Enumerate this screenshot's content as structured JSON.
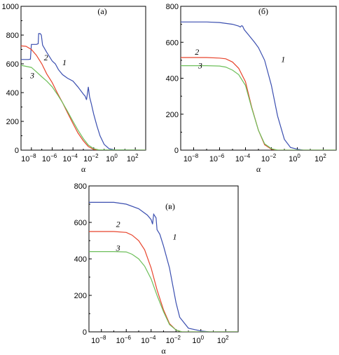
{
  "chart_data": [
    {
      "type": "line",
      "title": "(a)",
      "xlabel": "α",
      "x_scale": "log",
      "xlim": [
        1e-09,
        1000.0
      ],
      "x_ticks": [
        {
          "base": "10",
          "exp": "−8",
          "value": 1e-08
        },
        {
          "base": "10",
          "exp": "−6",
          "value": 1e-06
        },
        {
          "base": "10",
          "exp": "−4",
          "value": 0.0001
        },
        {
          "base": "10",
          "exp": "−2",
          "value": 0.01
        },
        {
          "base": "10",
          "exp": "0",
          "value": 1
        },
        {
          "base": "10",
          "exp": "2",
          "value": 100
        }
      ],
      "ylim": [
        0,
        1000
      ],
      "y_ticks": [
        "0",
        "200",
        "400",
        "600",
        "800",
        "1000"
      ],
      "series": [
        {
          "label": "1",
          "color": "#3b4fb0",
          "points": [
            [
              1e-09,
              630
            ],
            [
              5e-09,
              630
            ],
            [
              8e-09,
              632
            ],
            [
              1e-08,
              735
            ],
            [
              3e-08,
              735
            ],
            [
              4.5e-08,
              740
            ],
            [
              5e-08,
              810
            ],
            [
              7e-08,
              810
            ],
            [
              9e-08,
              800
            ],
            [
              1.2e-07,
              730
            ],
            [
              3e-07,
              680
            ],
            [
              1e-06,
              620
            ],
            [
              2e-06,
              600
            ],
            [
              4e-06,
              560
            ],
            [
              1e-05,
              525
            ],
            [
              3e-05,
              500
            ],
            [
              0.0001,
              480
            ],
            [
              0.0003,
              440
            ],
            [
              0.001,
              390
            ],
            [
              0.0015,
              375
            ],
            [
              0.002,
              350
            ],
            [
              0.0025,
              395
            ],
            [
              0.003,
              440
            ],
            [
              0.004,
              370
            ],
            [
              0.006,
              320
            ],
            [
              0.01,
              250
            ],
            [
              0.02,
              170
            ],
            [
              0.04,
              100
            ],
            [
              0.1,
              40
            ],
            [
              0.3,
              10
            ],
            [
              1,
              2
            ],
            [
              1000,
              0
            ]
          ],
          "label_at": [
            1.5e-05,
            590
          ]
        },
        {
          "label": "2",
          "color": "#e8442c",
          "points": [
            [
              1e-09,
              725
            ],
            [
              3e-09,
              722
            ],
            [
              1e-08,
              700
            ],
            [
              3e-08,
              660
            ],
            [
              1e-07,
              600
            ],
            [
              3e-07,
              530
            ],
            [
              1e-06,
              470
            ],
            [
              3e-06,
              400
            ],
            [
              1e-05,
              330
            ],
            [
              3e-05,
              260
            ],
            [
              0.0001,
              185
            ],
            [
              0.0003,
              120
            ],
            [
              0.001,
              65
            ],
            [
              0.003,
              25
            ],
            [
              0.01,
              5
            ],
            [
              0.03,
              1
            ],
            [
              1000,
              0
            ]
          ],
          "label_at": [
            2.5e-07,
            625
          ]
        },
        {
          "label": "3",
          "color": "#6dbf5a",
          "points": [
            [
              1e-09,
              590
            ],
            [
              1e-08,
              575
            ],
            [
              3e-08,
              545
            ],
            [
              1e-07,
              510
            ],
            [
              3e-07,
              480
            ],
            [
              1e-06,
              440
            ],
            [
              3e-06,
              390
            ],
            [
              1e-05,
              330
            ],
            [
              3e-05,
              270
            ],
            [
              0.0001,
              200
            ],
            [
              0.0003,
              140
            ],
            [
              0.001,
              80
            ],
            [
              0.003,
              35
            ],
            [
              0.01,
              10
            ],
            [
              0.03,
              2
            ],
            [
              1000,
              0
            ]
          ],
          "label_at": [
            1.2e-08,
            500
          ]
        }
      ]
    },
    {
      "type": "line",
      "title": "(б)",
      "xlabel": "α",
      "x_scale": "log",
      "xlim": [
        1e-09,
        1000.0
      ],
      "x_ticks": [
        {
          "base": "10",
          "exp": "−8",
          "value": 1e-08
        },
        {
          "base": "10",
          "exp": "−6",
          "value": 1e-06
        },
        {
          "base": "10",
          "exp": "−4",
          "value": 0.0001
        },
        {
          "base": "10",
          "exp": "−2",
          "value": 0.01
        },
        {
          "base": "10",
          "exp": "0",
          "value": 1
        },
        {
          "base": "10",
          "exp": "2",
          "value": 100
        }
      ],
      "ylim": [
        0,
        800
      ],
      "y_ticks": [
        "0",
        "200",
        "400",
        "600",
        "800"
      ],
      "series": [
        {
          "label": "1",
          "color": "#3b4fb0",
          "points": [
            [
              1e-09,
              713
            ],
            [
              1e-07,
              713
            ],
            [
              1e-06,
              710
            ],
            [
              1e-05,
              700
            ],
            [
              3e-05,
              690
            ],
            [
              4e-05,
              685
            ],
            [
              5e-05,
              692
            ],
            [
              6e-05,
              690
            ],
            [
              8e-05,
              670
            ],
            [
              0.0002,
              635
            ],
            [
              0.0005,
              600
            ],
            [
              0.001,
              570
            ],
            [
              0.003,
              500
            ],
            [
              0.01,
              360
            ],
            [
              0.03,
              190
            ],
            [
              0.1,
              60
            ],
            [
              0.3,
              15
            ],
            [
              1,
              5
            ],
            [
              3,
              0
            ],
            [
              1000,
              0
            ]
          ],
          "label_at": [
            0.08,
            490
          ]
        },
        {
          "label": "2",
          "color": "#e8442c",
          "points": [
            [
              1e-09,
              515
            ],
            [
              1e-07,
              515
            ],
            [
              1e-06,
              512
            ],
            [
              3e-06,
              508
            ],
            [
              1e-05,
              490
            ],
            [
              3e-05,
              455
            ],
            [
              0.0001,
              380
            ],
            [
              0.0003,
              240
            ],
            [
              0.001,
              110
            ],
            [
              0.003,
              30
            ],
            [
              0.01,
              5
            ],
            [
              0.03,
              0
            ],
            [
              1000,
              0
            ]
          ],
          "label_at": [
            1.8e-08,
            530
          ]
        },
        {
          "label": "3",
          "color": "#6dbf5a",
          "points": [
            [
              1e-09,
              470
            ],
            [
              1e-07,
              470
            ],
            [
              1e-06,
              468
            ],
            [
              3e-06,
              462
            ],
            [
              1e-05,
              445
            ],
            [
              3e-05,
              420
            ],
            [
              0.0001,
              360
            ],
            [
              0.0003,
              235
            ],
            [
              0.001,
              110
            ],
            [
              0.003,
              35
            ],
            [
              0.01,
              8
            ],
            [
              0.03,
              0
            ],
            [
              1000,
              0
            ]
          ],
          "label_at": [
            3.2e-08,
            455
          ]
        }
      ]
    },
    {
      "type": "line",
      "title": "(в)",
      "xlabel": "α",
      "x_scale": "log",
      "xlim": [
        1e-09,
        1000.0
      ],
      "x_ticks": [
        {
          "base": "10",
          "exp": "−8",
          "value": 1e-08
        },
        {
          "base": "10",
          "exp": "−6",
          "value": 1e-06
        },
        {
          "base": "10",
          "exp": "−4",
          "value": 0.0001
        },
        {
          "base": "10",
          "exp": "−2",
          "value": 0.01
        },
        {
          "base": "10",
          "exp": "0",
          "value": 1
        },
        {
          "base": "10",
          "exp": "2",
          "value": 100
        }
      ],
      "ylim": [
        0,
        800
      ],
      "y_ticks": [
        "0",
        "200",
        "400",
        "600",
        "800"
      ],
      "series": [
        {
          "label": "1",
          "color": "#3b4fb0",
          "points": [
            [
              1e-09,
              710
            ],
            [
              1e-07,
              710
            ],
            [
              1e-06,
              700
            ],
            [
              1e-05,
              675
            ],
            [
              5e-05,
              640
            ],
            [
              0.0001,
              615
            ],
            [
              0.00013,
              590
            ],
            [
              0.00016,
              645
            ],
            [
              0.0002,
              635
            ],
            [
              0.00025,
              625
            ],
            [
              0.0003,
              560
            ],
            [
              0.0005,
              535
            ],
            [
              0.001,
              470
            ],
            [
              0.003,
              350
            ],
            [
              0.01,
              160
            ],
            [
              0.02,
              80
            ],
            [
              0.1,
              20
            ],
            [
              1,
              5
            ],
            [
              5,
              0
            ],
            [
              1000,
              0
            ]
          ],
          "label_at": [
            0.008,
            505
          ]
        },
        {
          "label": "2",
          "color": "#e8442c",
          "points": [
            [
              1e-09,
              550
            ],
            [
              1e-07,
              550
            ],
            [
              1e-06,
              545
            ],
            [
              3e-06,
              530
            ],
            [
              1e-05,
              500
            ],
            [
              3e-05,
              450
            ],
            [
              0.0001,
              350
            ],
            [
              0.0003,
              230
            ],
            [
              0.001,
              120
            ],
            [
              0.003,
              45
            ],
            [
              0.01,
              10
            ],
            [
              0.03,
              0
            ],
            [
              1000,
              0
            ]
          ],
          "label_at": [
            2.2e-07,
            575
          ]
        },
        {
          "label": "3",
          "color": "#6dbf5a",
          "points": [
            [
              1e-09,
              440
            ],
            [
              1e-07,
              440
            ],
            [
              1e-06,
              438
            ],
            [
              3e-06,
              425
            ],
            [
              1e-05,
              400
            ],
            [
              3e-05,
              360
            ],
            [
              0.0001,
              290
            ],
            [
              0.0003,
              200
            ],
            [
              0.001,
              110
            ],
            [
              0.003,
              40
            ],
            [
              0.01,
              10
            ],
            [
              0.03,
              0
            ],
            [
              1000,
              0
            ]
          ],
          "label_at": [
            2.2e-07,
            445
          ]
        }
      ]
    }
  ]
}
